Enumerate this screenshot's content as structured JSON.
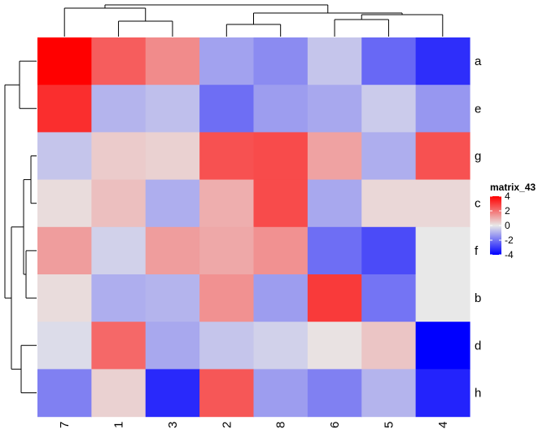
{
  "chart_data": {
    "type": "heatmap",
    "title": "",
    "rows": [
      "a",
      "e",
      "g",
      "c",
      "f",
      "b",
      "d",
      "h"
    ],
    "columns": [
      "7",
      "1",
      "3",
      "2",
      "8",
      "6",
      "5",
      "4"
    ],
    "values": [
      [
        4.0,
        2.4,
        1.6,
        -1.2,
        -1.6,
        -0.6,
        -2.2,
        -3.2
      ],
      [
        3.2,
        -0.9,
        -0.7,
        -2.1,
        -1.3,
        -1.1,
        -0.5,
        -1.4
      ],
      [
        -0.6,
        0.5,
        0.4,
        2.6,
        2.7,
        1.2,
        -1.0,
        2.6
      ],
      [
        0.2,
        0.7,
        -1.0,
        1.0,
        2.7,
        -1.1,
        0.3,
        0.3
      ],
      [
        1.3,
        -0.4,
        1.3,
        1.1,
        1.5,
        -2.1,
        -2.7,
        0.0
      ],
      [
        0.2,
        -1.0,
        -0.9,
        1.5,
        -1.3,
        3.0,
        -2.0,
        0.0
      ],
      [
        -0.2,
        2.2,
        -1.1,
        -0.6,
        -0.4,
        0.1,
        0.6,
        -4.0
      ],
      [
        -1.8,
        0.4,
        -3.3,
        2.5,
        -1.3,
        -1.8,
        -0.9,
        -3.4
      ]
    ],
    "color_scale": {
      "name": "matrix_43",
      "ticks": [
        4,
        2,
        0,
        -2,
        -4
      ],
      "stops": [
        {
          "value": -4,
          "color": "#0000ff"
        },
        {
          "value": 0,
          "color": "#e8e8e8"
        },
        {
          "value": 4,
          "color": "#ff0000"
        }
      ]
    },
    "legend_position": "right",
    "row_dendrogram": true,
    "column_dendrogram": true
  }
}
